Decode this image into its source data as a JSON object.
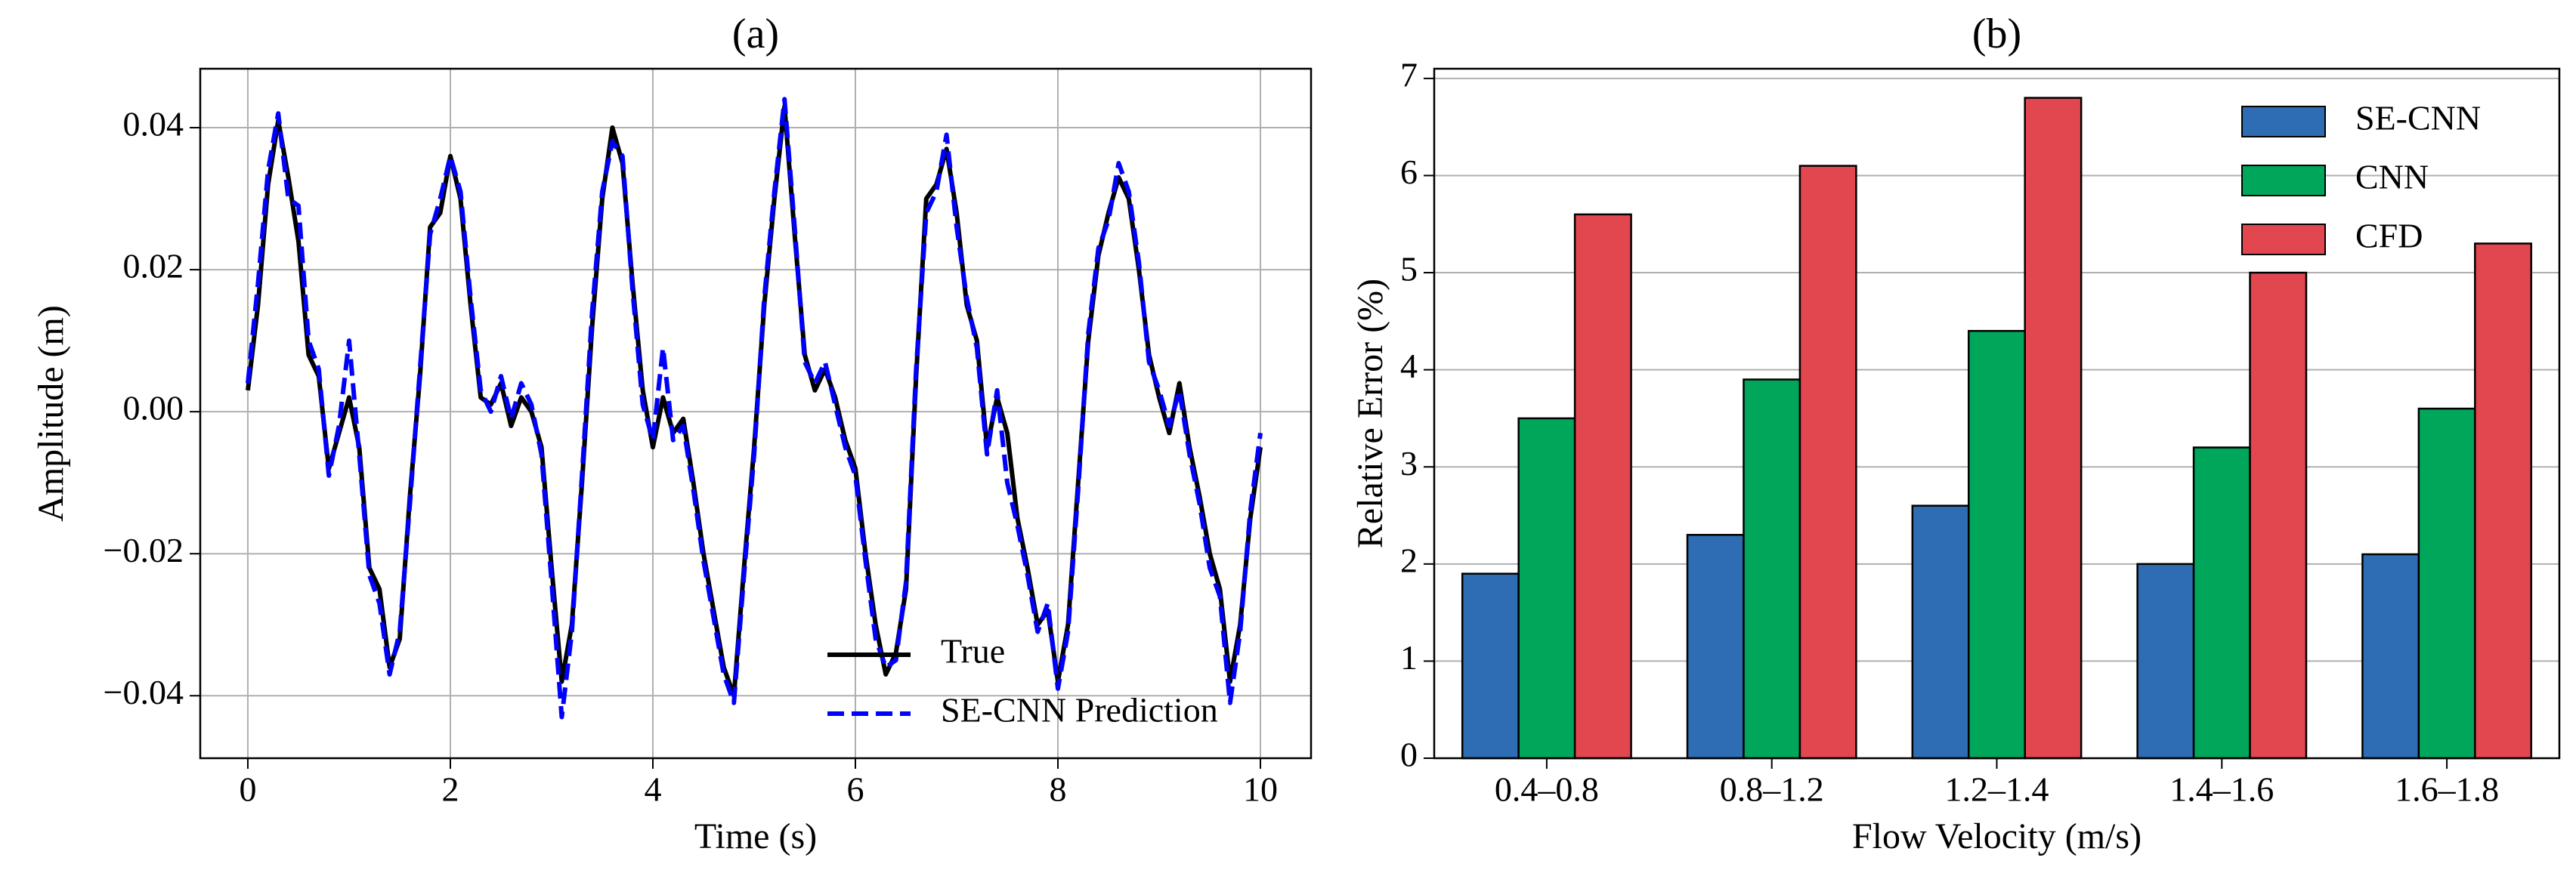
{
  "chart_data": [
    {
      "type": "line",
      "title": "(a)",
      "xlabel": "Time (s)",
      "ylabel": "Amplitude (m)",
      "x": [
        0,
        0.1,
        0.2,
        0.3,
        0.4,
        0.5,
        0.6,
        0.7,
        0.8,
        0.9,
        1,
        1.1,
        1.2,
        1.3,
        1.4,
        1.5,
        1.6,
        1.7,
        1.8,
        1.9,
        2,
        2.1,
        2.2,
        2.3,
        2.4,
        2.5,
        2.6,
        2.7,
        2.8,
        2.9,
        3,
        3.1,
        3.2,
        3.3,
        3.4,
        3.5,
        3.6,
        3.7,
        3.8,
        3.9,
        4,
        4.1,
        4.2,
        4.3,
        4.4,
        4.5,
        4.6,
        4.7,
        4.8,
        4.9,
        5,
        5.1,
        5.2,
        5.3,
        5.4,
        5.5,
        5.6,
        5.7,
        5.8,
        5.9,
        6,
        6.1,
        6.2,
        6.3,
        6.4,
        6.5,
        6.6,
        6.7,
        6.8,
        6.9,
        7,
        7.1,
        7.2,
        7.3,
        7.4,
        7.5,
        7.6,
        7.7,
        7.8,
        7.9,
        8,
        8.1,
        8.2,
        8.3,
        8.4,
        8.5,
        8.6,
        8.7,
        8.8,
        8.9,
        9,
        9.1,
        9.2,
        9.3,
        9.4,
        9.5,
        9.6,
        9.7,
        9.8,
        9.9,
        10
      ],
      "series": [
        {
          "name": "True",
          "color": "#000000",
          "linestyle": "solid",
          "values": [
            0.003,
            0.015,
            0.032,
            0.041,
            0.033,
            0.024,
            0.008,
            0.005,
            -0.008,
            -0.003,
            0.002,
            -0.005,
            -0.022,
            -0.025,
            -0.036,
            -0.032,
            -0.012,
            0.005,
            0.026,
            0.028,
            0.036,
            0.03,
            0.015,
            0.002,
            0.001,
            0.004,
            -0.002,
            0.002,
            0.0,
            -0.005,
            -0.022,
            -0.038,
            -0.03,
            -0.01,
            0.012,
            0.03,
            0.04,
            0.035,
            0.018,
            0.003,
            -0.005,
            0.002,
            -0.003,
            -0.001,
            -0.01,
            -0.02,
            -0.028,
            -0.036,
            -0.04,
            -0.022,
            -0.005,
            0.015,
            0.03,
            0.043,
            0.025,
            0.008,
            0.003,
            0.006,
            0.002,
            -0.004,
            -0.008,
            -0.02,
            -0.03,
            -0.037,
            -0.034,
            -0.025,
            0.005,
            0.03,
            0.032,
            0.037,
            0.028,
            0.015,
            0.01,
            -0.005,
            0.002,
            -0.003,
            -0.015,
            -0.022,
            -0.03,
            -0.028,
            -0.038,
            -0.03,
            -0.01,
            0.01,
            0.022,
            0.028,
            0.033,
            0.03,
            0.02,
            0.008,
            0.002,
            -0.003,
            0.004,
            -0.005,
            -0.012,
            -0.02,
            -0.025,
            -0.038,
            -0.03,
            -0.015,
            -0.005
          ]
        },
        {
          "name": "SE-CNN Prediction",
          "color": "#0000ff",
          "linestyle": "dashed",
          "values": [
            0.004,
            0.018,
            0.034,
            0.042,
            0.03,
            0.029,
            0.01,
            0.006,
            -0.009,
            -0.002,
            0.01,
            -0.006,
            -0.023,
            -0.027,
            -0.037,
            -0.031,
            -0.013,
            0.006,
            0.025,
            0.03,
            0.036,
            0.031,
            0.016,
            0.003,
            0.0,
            0.005,
            -0.001,
            0.004,
            0.001,
            -0.006,
            -0.024,
            -0.043,
            -0.031,
            -0.009,
            0.014,
            0.031,
            0.038,
            0.036,
            0.017,
            0.001,
            -0.004,
            0.009,
            -0.004,
            -0.002,
            -0.011,
            -0.021,
            -0.029,
            -0.037,
            -0.041,
            -0.023,
            -0.006,
            0.016,
            0.031,
            0.044,
            0.026,
            0.007,
            0.004,
            0.007,
            0.001,
            -0.005,
            -0.009,
            -0.021,
            -0.032,
            -0.036,
            -0.035,
            -0.024,
            0.006,
            0.028,
            0.031,
            0.039,
            0.026,
            0.016,
            0.009,
            -0.006,
            0.003,
            -0.01,
            -0.016,
            -0.023,
            -0.031,
            -0.027,
            -0.039,
            -0.031,
            -0.011,
            0.011,
            0.023,
            0.027,
            0.035,
            0.031,
            0.021,
            0.007,
            0.003,
            -0.002,
            0.003,
            -0.006,
            -0.013,
            -0.022,
            -0.026,
            -0.041,
            -0.031,
            -0.014,
            -0.003
          ]
        }
      ],
      "xlim": [
        -0.47,
        10.5
      ],
      "xticks": [
        0,
        2,
        4,
        6,
        8,
        10
      ],
      "ylim": [
        -0.0488,
        0.0483
      ],
      "yticks": [
        {
          "value": -0.04,
          "label": "−0.04"
        },
        {
          "value": -0.02,
          "label": "−0.02"
        },
        {
          "value": 0,
          "label": "0.00"
        },
        {
          "value": 0.02,
          "label": "0.02"
        },
        {
          "value": 0.04,
          "label": "0.04"
        }
      ],
      "grid": "both",
      "legend": "lower right"
    },
    {
      "type": "bar",
      "title": "(b)",
      "xlabel": "Flow Velocity (m/s)",
      "ylabel": "Relative Error (%)",
      "categories": [
        "0.4–0.8",
        "0.8–1.2",
        "1.2–1.4",
        "1.4–1.6",
        "1.6–1.8"
      ],
      "series": [
        {
          "name": "SE-CNN",
          "color": "#2e6db4",
          "values": [
            1.9,
            2.3,
            2.6,
            2.0,
            2.1
          ]
        },
        {
          "name": "CNN",
          "color": "#00a65a",
          "values": [
            3.5,
            3.9,
            4.4,
            3.2,
            3.6
          ]
        },
        {
          "name": "CFD",
          "color": "#e2474f",
          "values": [
            5.6,
            6.1,
            6.8,
            5.0,
            5.3
          ]
        }
      ],
      "ylim": [
        0,
        7.1
      ],
      "yticks": [
        0,
        1,
        2,
        3,
        4,
        5,
        6,
        7
      ],
      "grid": "y",
      "legend": "upper right"
    }
  ]
}
